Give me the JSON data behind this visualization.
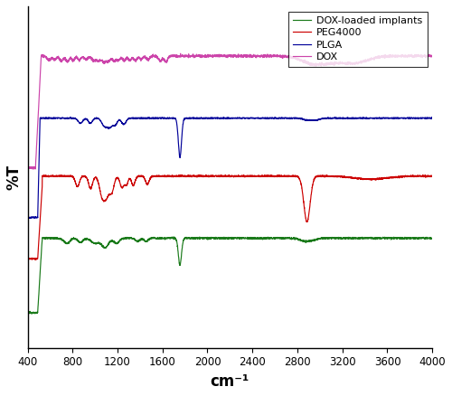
{
  "xlabel": "cm⁻¹",
  "ylabel": "%T",
  "xlim": [
    400,
    4000
  ],
  "x_ticks": [
    400,
    800,
    1200,
    1600,
    2000,
    2400,
    2800,
    3200,
    3600,
    4000
  ],
  "colors": {
    "DOX_loaded": "#1a7a1a",
    "PEG4000": "#cc0000",
    "PLGA": "#000099",
    "DOX": "#cc44aa"
  },
  "offsets": {
    "DOX_loaded": 0,
    "PEG4000": 28,
    "PLGA": 56,
    "DOX": 84
  },
  "legend_labels": [
    "DOX-loaded implants",
    "PEG4000",
    "PLGA",
    "DOX"
  ],
  "ylim": [
    -45,
    120
  ],
  "figsize": [
    5.0,
    4.38
  ],
  "dpi": 100
}
